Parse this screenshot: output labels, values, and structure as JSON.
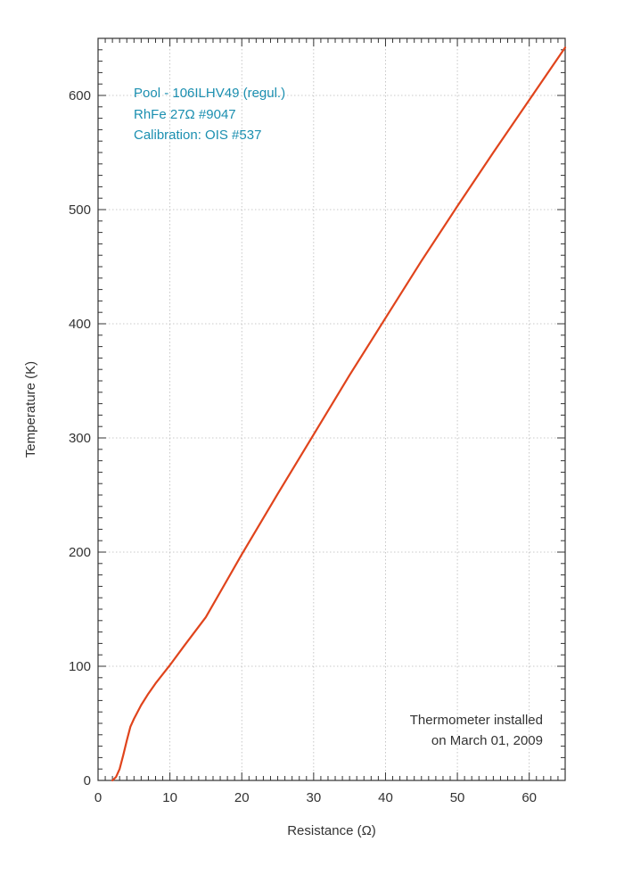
{
  "chart_data": {
    "type": "line",
    "xlabel": "Resistance (Ω)",
    "ylabel": "Temperature (K)",
    "xlim": [
      0,
      65
    ],
    "ylim": [
      0,
      650
    ],
    "xticks": [
      0,
      10,
      20,
      30,
      40,
      50,
      60
    ],
    "yticks": [
      0,
      100,
      200,
      300,
      400,
      500,
      600
    ],
    "grid": true,
    "series": [
      {
        "color": "#e0441c",
        "x": [
          2.0,
          2.5,
          3.0,
          3.5,
          4.0,
          4.5,
          5.0,
          6.0,
          7.0,
          8.0,
          9.0,
          10.0,
          12.0,
          15.0,
          20.0,
          25.0,
          30.0,
          35.0,
          40.0,
          45.0,
          50.0,
          55.0,
          60.0,
          65.0
        ],
        "y": [
          0,
          3,
          10,
          22,
          35,
          47,
          54,
          66,
          76,
          85,
          93,
          101,
          118,
          143,
          198,
          251,
          303,
          355,
          405,
          455,
          503,
          550,
          596,
          642
        ]
      }
    ],
    "annotations": {
      "top_left": [
        "Pool - 106ILHV49 (regul.)",
        "RhFe 27Ω #9047",
        "Calibration: OIS #537"
      ],
      "bottom_right": [
        "Thermometer installed",
        "on March 01, 2009"
      ]
    }
  }
}
